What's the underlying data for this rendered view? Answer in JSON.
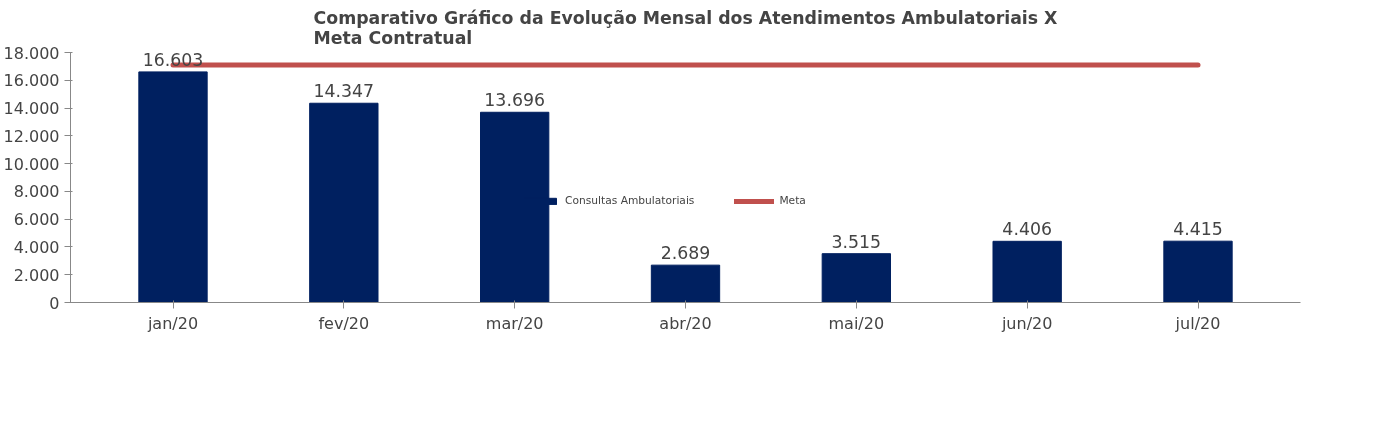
{
  "chart_data": {
    "type": "bar",
    "title": "Comparativo Gráfico da Evolução Mensal dos Atendimentos Ambulatoriais X Meta Contratual",
    "categories": [
      "jan/20",
      "fev/20",
      "mar/20",
      "abr/20",
      "mai/20",
      "jun/20",
      "jul/20"
    ],
    "series": [
      {
        "name": "Consultas Ambulatoriais",
        "color": "#002060",
        "values": [
          16603,
          14347,
          13696,
          2689,
          3515,
          4406,
          4415
        ],
        "value_labels": [
          "16.603",
          "14.347",
          "13.696",
          "2.689",
          "3.515",
          "4.406",
          "4.415"
        ]
      },
      {
        "name": "Meta",
        "type": "line",
        "color": "#c0504d",
        "values": [
          17100,
          17100,
          17100,
          17100,
          17100,
          17100,
          17100
        ]
      }
    ],
    "ylim": [
      0,
      18000
    ],
    "yticks": [
      {
        "value": 0,
        "label": "0"
      },
      {
        "value": 2000,
        "label": "2.000"
      },
      {
        "value": 4000,
        "label": "4.000"
      },
      {
        "value": 6000,
        "label": "6.000"
      },
      {
        "value": 8000,
        "label": "8.000"
      },
      {
        "value": 10000,
        "label": "10.000"
      },
      {
        "value": 12000,
        "label": "12.000"
      },
      {
        "value": 14000,
        "label": "14.000"
      },
      {
        "value": 16000,
        "label": "16.000"
      },
      {
        "value": 18000,
        "label": "18.000"
      }
    ],
    "grid": false,
    "legend": "bottom"
  }
}
